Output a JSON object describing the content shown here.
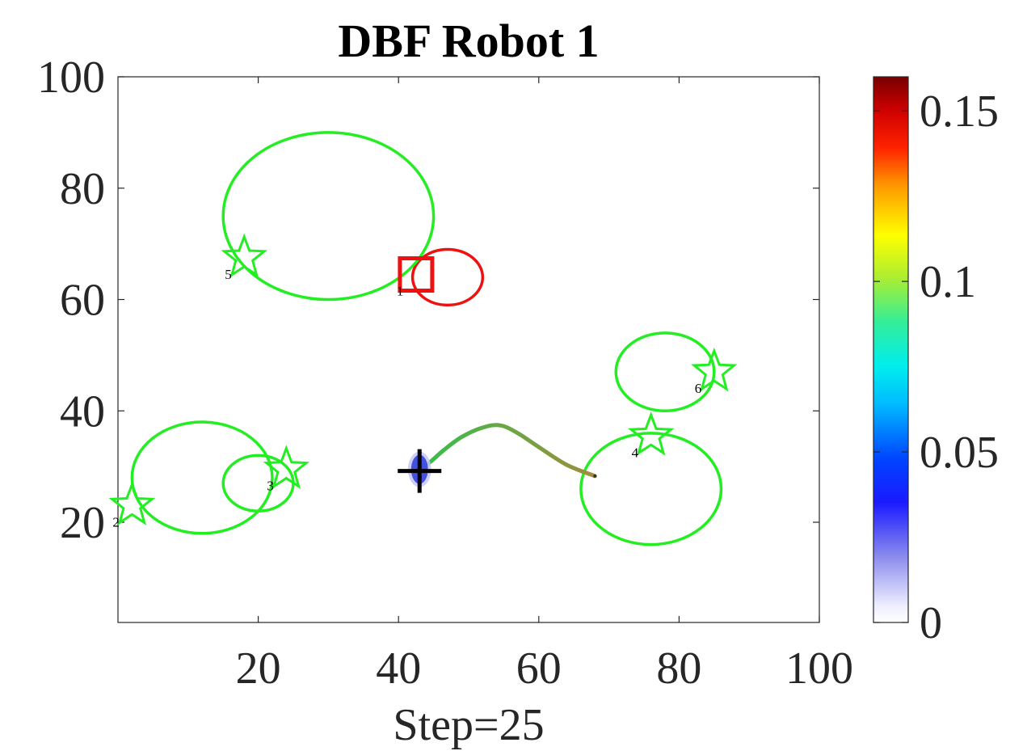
{
  "chart_data": {
    "type": "scatter",
    "title": "DBF Robot 1",
    "xlabel": "Step=25",
    "ylabel": "",
    "xlim": [
      0,
      100
    ],
    "ylim": [
      2,
      100
    ],
    "xticks": [
      {
        "v": 20,
        "label": "20"
      },
      {
        "v": 40,
        "label": "40"
      },
      {
        "v": 60,
        "label": "60"
      },
      {
        "v": 80,
        "label": "80"
      },
      {
        "v": 100,
        "label": "100"
      }
    ],
    "yticks": [
      {
        "v": 20,
        "label": "20"
      },
      {
        "v": 40,
        "label": "40"
      },
      {
        "v": 60,
        "label": "60"
      },
      {
        "v": 80,
        "label": "80"
      },
      {
        "v": 100,
        "label": "100"
      }
    ],
    "grid": false,
    "colorbar": {
      "min": 0,
      "max": 0.16,
      "colormap": "jet-white",
      "ticks": [
        {
          "v": 0,
          "label": "0"
        },
        {
          "v": 0.05,
          "label": "0.05"
        },
        {
          "v": 0.1,
          "label": "0.1"
        },
        {
          "v": 0.15,
          "label": "0.15"
        }
      ]
    },
    "colors": {
      "target": "#22ee22",
      "robot_target": "#ee1111",
      "path_start": "#34c04c",
      "path_end": "#a08c3c",
      "estimate": "#000000",
      "density": "#3344dd"
    },
    "targets": [
      {
        "id": "1",
        "x": 42.5,
        "y": 64.5,
        "shape": "square",
        "orbit": {
          "cx": 47,
          "cy": 64,
          "rx": 5,
          "ry": 5
        }
      },
      {
        "id": "2",
        "x": 2,
        "y": 23,
        "shape": "star",
        "orbit": {
          "cx": 12,
          "cy": 28,
          "rx": 10,
          "ry": 10
        }
      },
      {
        "id": "3",
        "x": 24,
        "y": 29.5,
        "shape": "star",
        "orbit": {
          "cx": 20,
          "cy": 27,
          "rx": 5,
          "ry": 5
        }
      },
      {
        "id": "4",
        "x": 76,
        "y": 35.5,
        "shape": "star",
        "orbit": {
          "cx": 76,
          "cy": 26,
          "rx": 10,
          "ry": 10
        }
      },
      {
        "id": "5",
        "x": 18,
        "y": 67.5,
        "shape": "star",
        "orbit": {
          "cx": 30,
          "cy": 75,
          "rx": 15,
          "ry": 15
        }
      },
      {
        "id": "6",
        "x": 85,
        "y": 47,
        "shape": "star",
        "orbit": {
          "cx": 78,
          "cy": 47,
          "rx": 7,
          "ry": 7
        }
      }
    ],
    "robot_path": [
      [
        68,
        28.3
      ],
      [
        64,
        30.3
      ],
      [
        60,
        33.5
      ],
      [
        57,
        36
      ],
      [
        54.5,
        37.4
      ],
      [
        52,
        37
      ],
      [
        49,
        35.3
      ],
      [
        46.5,
        33
      ],
      [
        44.5,
        30.8
      ],
      [
        43,
        29.5
      ]
    ],
    "estimate_marker": {
      "x": 43,
      "y": 29.2
    },
    "density_blob": {
      "cx": 43,
      "cy": 29.5,
      "rx": 1.2,
      "ry": 2.6
    }
  }
}
